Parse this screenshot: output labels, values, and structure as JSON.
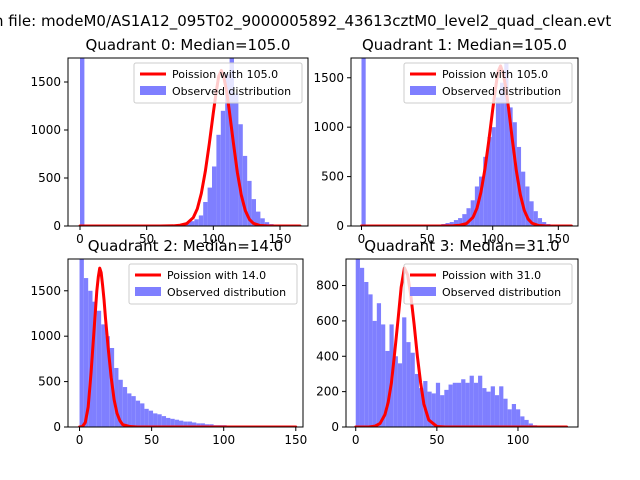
{
  "suptitle": "n file: modeM0/AS1A12_095T02_9000005892_43613cztM0_level2_quad_clean.evt",
  "colors": {
    "hist": "#7f7fff",
    "curve": "#ff0000",
    "axis": "#000000"
  },
  "chart_data": [
    {
      "type": "bar",
      "title": "Quadrant 0: Median=105.0",
      "median": 105.0,
      "xlim": [
        -9,
        171
      ],
      "ylim": [
        0,
        1750
      ],
      "xticks": [
        0,
        50,
        100,
        150
      ],
      "yticks": [
        0,
        500,
        1000,
        1500
      ],
      "legend": {
        "placement": "top-right",
        "curve_label": "Poission with 105.0",
        "hist_label": "Observed distribution"
      },
      "hist": {
        "bin_edges": [
          0,
          3.3,
          6.6,
          9.9,
          13.2,
          16.5,
          19.8,
          23.1,
          26.4,
          29.7,
          33,
          36.3,
          39.6,
          42.9,
          46.2,
          49.5,
          52.8,
          56.1,
          59.4,
          62.7,
          66,
          69.3,
          72.6,
          75.9,
          79.2,
          82.5,
          85.8,
          89.1,
          92.4,
          95.7,
          99,
          102.3,
          105.6,
          108.9,
          112.2,
          115.5,
          118.8,
          122.1,
          125.4,
          128.7,
          132,
          135.3,
          138.6,
          141.9,
          145.2,
          148.5,
          151.8,
          155.1,
          158.4,
          161.7,
          165
        ],
        "counts": [
          1750,
          0,
          0,
          0,
          0,
          0,
          0,
          0,
          0,
          0,
          0,
          0,
          0,
          0,
          0,
          0,
          0,
          0,
          0,
          0,
          0,
          0,
          0,
          0,
          30,
          50,
          70,
          110,
          250,
          400,
          620,
          950,
          1200,
          1580,
          1750,
          1380,
          1060,
          730,
          470,
          280,
          150,
          80,
          40,
          20,
          10,
          5,
          2,
          0,
          0,
          0
        ]
      },
      "curve": {
        "x": [
          0,
          20,
          40,
          60,
          70,
          75,
          80,
          85,
          88,
          91,
          94,
          97,
          100,
          102,
          104,
          106,
          108,
          110,
          112,
          115,
          118,
          121,
          124,
          127,
          130,
          135,
          140,
          145,
          150,
          165
        ],
        "y": [
          0,
          0,
          0,
          0,
          2,
          8,
          25,
          88,
          180,
          340,
          570,
          860,
          1180,
          1380,
          1560,
          1620,
          1540,
          1400,
          1200,
          870,
          560,
          320,
          160,
          70,
          28,
          5,
          1,
          0,
          0,
          0
        ]
      }
    },
    {
      "type": "bar",
      "title": "Quadrant 1: Median=105.0",
      "median": 105.0,
      "xlim": [
        -8,
        165
      ],
      "ylim": [
        0,
        1700
      ],
      "xticks": [
        0,
        50,
        100,
        150
      ],
      "yticks": [
        0,
        500,
        1000,
        1500
      ],
      "legend": {
        "placement": "top-right",
        "curve_label": "Poission with 105.0",
        "hist_label": "Observed distribution"
      },
      "hist": {
        "bin_edges": [
          0,
          3.2,
          6.4,
          9.6,
          12.8,
          16,
          19.2,
          22.4,
          25.6,
          28.8,
          32,
          35.2,
          38.4,
          41.6,
          44.8,
          48,
          51.2,
          54.4,
          57.6,
          60.8,
          64,
          67.2,
          70.4,
          73.6,
          76.8,
          80,
          83.2,
          86.4,
          89.6,
          92.8,
          96,
          99.2,
          102.4,
          105.6,
          108.8,
          112,
          115.2,
          118.4,
          121.6,
          124.8,
          128,
          131.2,
          134.4,
          137.6,
          140.8,
          144,
          147.2,
          150.4,
          153.6,
          156.8,
          160
        ],
        "counts": [
          1700,
          0,
          0,
          0,
          0,
          0,
          0,
          0,
          0,
          0,
          0,
          0,
          0,
          0,
          0,
          0,
          0,
          0,
          10,
          20,
          30,
          40,
          60,
          80,
          120,
          180,
          260,
          400,
          500,
          700,
          900,
          1000,
          1300,
          1450,
          1650,
          1200,
          1050,
          800,
          550,
          400,
          250,
          150,
          80,
          40,
          20,
          10,
          5,
          0,
          0,
          0
        ]
      },
      "curve": {
        "x": [
          0,
          20,
          40,
          60,
          70,
          75,
          80,
          85,
          88,
          91,
          94,
          97,
          100,
          102,
          104,
          106,
          108,
          110,
          112,
          115,
          118,
          121,
          124,
          127,
          130,
          135,
          140,
          145,
          150,
          160
        ],
        "y": [
          0,
          0,
          0,
          0,
          2,
          8,
          25,
          88,
          180,
          340,
          570,
          860,
          1180,
          1380,
          1560,
          1620,
          1540,
          1400,
          1200,
          870,
          560,
          320,
          160,
          70,
          28,
          5,
          1,
          0,
          0,
          0
        ]
      }
    },
    {
      "type": "bar",
      "title": "Quadrant 2: Median=14.0",
      "median": 14.0,
      "xlim": [
        -8,
        155
      ],
      "ylim": [
        0,
        1850
      ],
      "xticks": [
        0,
        50,
        100,
        150
      ],
      "yticks": [
        0,
        500,
        1000,
        1500
      ],
      "legend": {
        "placement": "top-right",
        "curve_label": "Poission with 14.0",
        "hist_label": "Observed distribution"
      },
      "hist": {
        "bin_edges": [
          0,
          3,
          6,
          9,
          12,
          15,
          18,
          21,
          24,
          27,
          30,
          33,
          36,
          39,
          42,
          45,
          48,
          51,
          54,
          57,
          60,
          63,
          66,
          69,
          72,
          75,
          78,
          81,
          84,
          87,
          90,
          93,
          96,
          99,
          102,
          105,
          108,
          111,
          114,
          117,
          120,
          123,
          126,
          129,
          132,
          135,
          138,
          141,
          144,
          147,
          150
        ],
        "counts": [
          1850,
          1640,
          1500,
          1380,
          1280,
          1130,
          1000,
          870,
          650,
          520,
          440,
          370,
          340,
          290,
          260,
          200,
          180,
          150,
          140,
          120,
          100,
          90,
          80,
          70,
          60,
          60,
          50,
          40,
          40,
          30,
          30,
          20,
          20,
          20,
          15,
          10,
          10,
          8,
          6,
          5,
          4,
          3,
          2,
          2,
          1,
          1,
          1,
          0,
          0,
          0
        ]
      },
      "curve": {
        "x": [
          0,
          2,
          4,
          6,
          8,
          10,
          12,
          13,
          14,
          15,
          16,
          17,
          18,
          20,
          22,
          24,
          26,
          28,
          30,
          35,
          40,
          150
        ],
        "y": [
          0,
          5,
          50,
          220,
          600,
          1050,
          1500,
          1650,
          1750,
          1700,
          1560,
          1400,
          1200,
          850,
          540,
          300,
          150,
          70,
          25,
          5,
          0,
          0
        ]
      }
    },
    {
      "type": "bar",
      "title": "Quadrant 3: Median=31.0",
      "median": 31.0,
      "xlim": [
        -6,
        137
      ],
      "ylim": [
        0,
        950
      ],
      "xticks": [
        0,
        50,
        100
      ],
      "yticks": [
        0,
        200,
        400,
        600,
        800
      ],
      "legend": {
        "placement": "top-right",
        "curve_label": "Poission with 31.0",
        "hist_label": "Observed distribution"
      },
      "hist": {
        "bin_edges": [
          0,
          2.6,
          5.2,
          7.8,
          10.4,
          13,
          15.6,
          18.2,
          20.8,
          23.4,
          26,
          28.6,
          31.2,
          33.8,
          36.4,
          39,
          41.6,
          44.2,
          46.8,
          49.4,
          52,
          54.6,
          57.2,
          59.8,
          62.4,
          65,
          67.6,
          70.2,
          72.8,
          75.4,
          78,
          80.6,
          83.2,
          85.8,
          88.4,
          91,
          93.6,
          96.2,
          98.8,
          101.4,
          104,
          106.6,
          109.2,
          111.8,
          114.4,
          117,
          119.6,
          122.2,
          124.8,
          127.4,
          130
        ],
        "counts": [
          950,
          900,
          820,
          750,
          600,
          700,
          580,
          430,
          580,
          400,
          360,
          620,
          480,
          420,
          300,
          220,
          260,
          200,
          190,
          250,
          180,
          210,
          240,
          250,
          250,
          270,
          250,
          290,
          250,
          290,
          220,
          200,
          230,
          180,
          230,
          160,
          100,
          130,
          100,
          60,
          40,
          20,
          10,
          5,
          2,
          0,
          0,
          0,
          0,
          0
        ]
      },
      "curve": {
        "x": [
          0,
          8,
          12,
          15,
          18,
          20,
          22,
          24,
          26,
          28,
          30,
          32,
          34,
          36,
          38,
          40,
          42,
          45,
          50,
          55,
          130
        ],
        "y": [
          0,
          0,
          5,
          20,
          70,
          140,
          250,
          420,
          600,
          790,
          900,
          860,
          740,
          580,
          400,
          250,
          130,
          40,
          3,
          0,
          0
        ]
      }
    }
  ]
}
